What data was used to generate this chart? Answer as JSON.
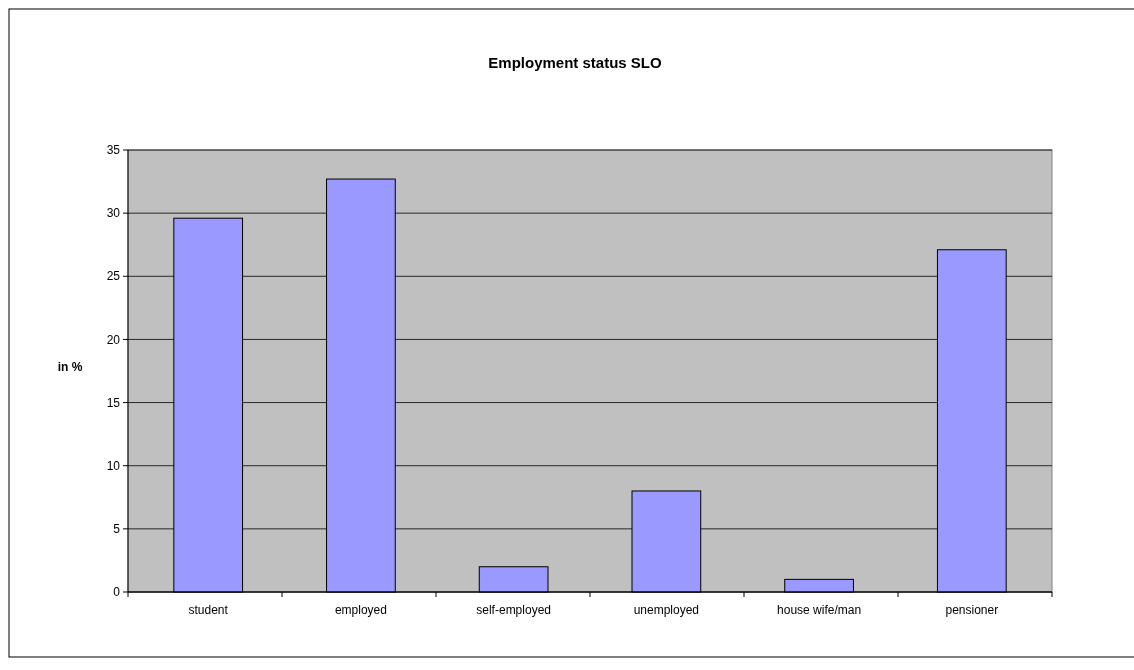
{
  "chart_data": {
    "type": "bar",
    "title": "Employment status SLO",
    "ylabel": "in %",
    "categories": [
      "student",
      "employed",
      "self-employed",
      "unemployed",
      "house wife/man",
      "pensioner"
    ],
    "values": [
      29.6,
      32.7,
      2,
      8,
      1,
      27.1
    ],
    "color": "#9999ff",
    "ylim": [
      0,
      35
    ],
    "yticks": [
      0,
      5,
      10,
      15,
      20,
      25,
      30,
      35
    ],
    "grid": "y"
  }
}
